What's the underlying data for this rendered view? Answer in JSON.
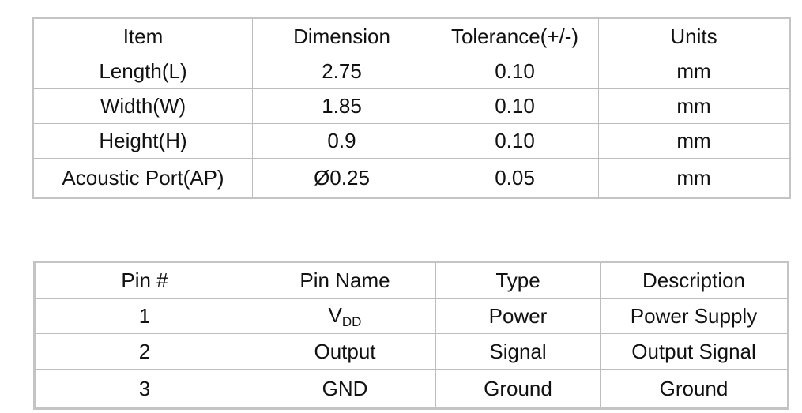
{
  "dimensions_table": {
    "headers": [
      "Item",
      "Dimension",
      "Tolerance(+/-)",
      "Units"
    ],
    "rows": [
      [
        "Length(L)",
        "2.75",
        "0.10",
        "mm"
      ],
      [
        "Width(W)",
        "1.85",
        "0.10",
        "mm"
      ],
      [
        "Height(H)",
        "0.9",
        "0.10",
        "mm"
      ],
      [
        "Acoustic Port(AP)",
        "Ø0.25",
        "0.05",
        "mm"
      ]
    ]
  },
  "pin_table": {
    "headers": [
      "Pin #",
      "Pin Name",
      "Type",
      "Description"
    ],
    "rows": [
      [
        "1",
        {
          "main": "V",
          "sub": "DD"
        },
        "Power",
        "Power Supply"
      ],
      [
        "2",
        "Output",
        "Signal",
        "Output Signal"
      ],
      [
        "3",
        "GND",
        "Ground",
        "Ground"
      ]
    ]
  }
}
